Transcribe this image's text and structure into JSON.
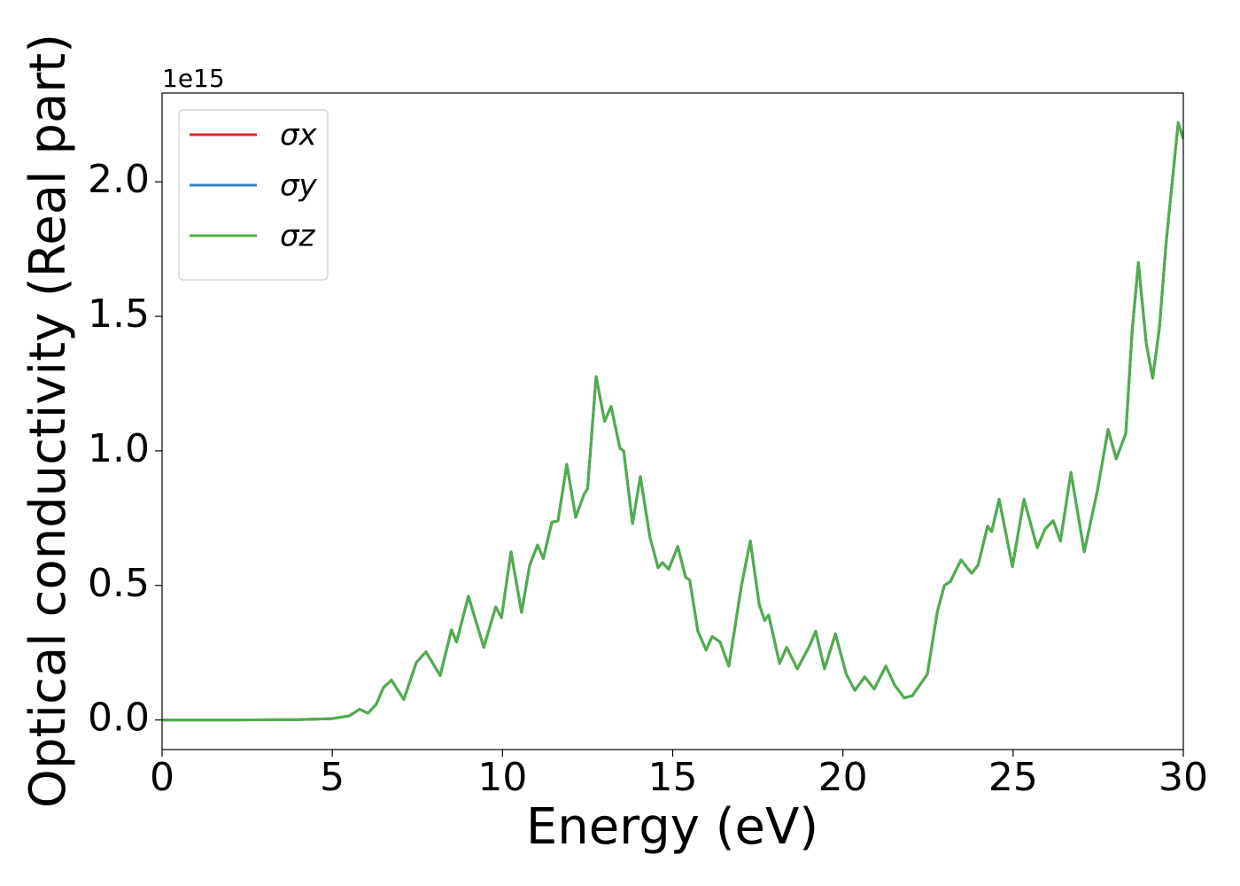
{
  "chart_data": {
    "type": "line",
    "x_label": "Energy (eV)",
    "y_label": "Optical conductivity (Real part)",
    "y_offset_label": "1e15",
    "xlim": [
      0,
      30
    ],
    "ylim": [
      -0.11,
      2.33
    ],
    "xticks": [
      0,
      5,
      10,
      15,
      20,
      25,
      30
    ],
    "yticks": [
      {
        "value": 0,
        "label": "0.0"
      },
      0.5,
      {
        "value": 1,
        "label": "1.0"
      },
      1.5,
      {
        "value": 2,
        "label": "2.0"
      }
    ],
    "grid": false,
    "legend": "upper left",
    "x": [
      0,
      2,
      4,
      5,
      5.5,
      5.8,
      6.05,
      6.3,
      6.5,
      6.74,
      7.1,
      7.47,
      7.75,
      8.17,
      8.5,
      8.65,
      9.0,
      9.45,
      9.8,
      9.97,
      10.25,
      10.56,
      10.8,
      11.03,
      11.2,
      11.45,
      11.63,
      11.89,
      12.15,
      12.4,
      12.5,
      12.75,
      13.0,
      13.19,
      13.45,
      13.56,
      13.82,
      14.05,
      14.33,
      14.57,
      14.7,
      14.88,
      15.15,
      15.38,
      15.5,
      15.74,
      15.98,
      16.16,
      16.39,
      16.65,
      17.02,
      17.28,
      17.54,
      17.7,
      17.82,
      18.14,
      18.35,
      18.66,
      19.0,
      19.2,
      19.46,
      19.78,
      20.1,
      20.35,
      20.64,
      20.92,
      21.26,
      21.52,
      21.8,
      22.04,
      22.48,
      22.77,
      22.98,
      23.16,
      23.47,
      23.78,
      23.97,
      24.25,
      24.37,
      24.59,
      24.98,
      25.32,
      25.71,
      25.94,
      26.18,
      26.39,
      26.7,
      27.09,
      27.48,
      27.79,
      28.03,
      28.31,
      28.5,
      28.68,
      28.91,
      29.1,
      29.3,
      29.5,
      29.85,
      30.0
    ],
    "series": [
      {
        "name": "σx",
        "color": "#d62728",
        "values": [
          0,
          0,
          0.001,
          0.005,
          0.015,
          0.04,
          0.025,
          0.06,
          0.12,
          0.148,
          0.076,
          0.214,
          0.253,
          0.165,
          0.335,
          0.29,
          0.46,
          0.27,
          0.42,
          0.38,
          0.625,
          0.4,
          0.575,
          0.65,
          0.6,
          0.735,
          0.74,
          0.95,
          0.753,
          0.84,
          0.86,
          1.276,
          1.11,
          1.165,
          1.01,
          1.0,
          0.73,
          0.905,
          0.68,
          0.566,
          0.585,
          0.56,
          0.645,
          0.53,
          0.52,
          0.33,
          0.26,
          0.31,
          0.29,
          0.2,
          0.5,
          0.665,
          0.43,
          0.37,
          0.39,
          0.21,
          0.27,
          0.19,
          0.27,
          0.33,
          0.19,
          0.32,
          0.17,
          0.11,
          0.16,
          0.115,
          0.2,
          0.13,
          0.082,
          0.09,
          0.17,
          0.4,
          0.5,
          0.515,
          0.595,
          0.545,
          0.575,
          0.72,
          0.7,
          0.82,
          0.57,
          0.82,
          0.64,
          0.71,
          0.74,
          0.665,
          0.92,
          0.625,
          0.855,
          1.08,
          0.97,
          1.065,
          1.45,
          1.7,
          1.4,
          1.27,
          1.46,
          1.78,
          2.22,
          2.16
        ]
      },
      {
        "name": "σy",
        "color": "#377eb8",
        "values": [
          0,
          0,
          0.001,
          0.005,
          0.015,
          0.04,
          0.025,
          0.06,
          0.12,
          0.148,
          0.076,
          0.214,
          0.253,
          0.165,
          0.335,
          0.29,
          0.46,
          0.27,
          0.42,
          0.38,
          0.625,
          0.4,
          0.575,
          0.65,
          0.6,
          0.735,
          0.74,
          0.95,
          0.753,
          0.84,
          0.86,
          1.276,
          1.11,
          1.165,
          1.01,
          1.0,
          0.73,
          0.905,
          0.68,
          0.566,
          0.585,
          0.56,
          0.645,
          0.53,
          0.52,
          0.33,
          0.26,
          0.31,
          0.29,
          0.2,
          0.5,
          0.665,
          0.43,
          0.37,
          0.39,
          0.21,
          0.27,
          0.19,
          0.27,
          0.33,
          0.19,
          0.32,
          0.17,
          0.11,
          0.16,
          0.115,
          0.2,
          0.13,
          0.082,
          0.09,
          0.17,
          0.4,
          0.5,
          0.515,
          0.595,
          0.545,
          0.575,
          0.72,
          0.7,
          0.82,
          0.57,
          0.82,
          0.64,
          0.71,
          0.74,
          0.665,
          0.92,
          0.625,
          0.855,
          1.08,
          0.97,
          1.065,
          1.45,
          1.7,
          1.4,
          1.27,
          1.46,
          1.78,
          2.22,
          2.16
        ]
      },
      {
        "name": "σz",
        "color": "#4daf4a",
        "values": [
          0,
          0,
          0.001,
          0.005,
          0.015,
          0.04,
          0.025,
          0.06,
          0.12,
          0.148,
          0.076,
          0.214,
          0.253,
          0.165,
          0.335,
          0.29,
          0.46,
          0.27,
          0.42,
          0.38,
          0.625,
          0.4,
          0.575,
          0.65,
          0.6,
          0.735,
          0.74,
          0.95,
          0.753,
          0.84,
          0.86,
          1.276,
          1.11,
          1.165,
          1.01,
          1.0,
          0.73,
          0.905,
          0.68,
          0.566,
          0.585,
          0.56,
          0.645,
          0.53,
          0.52,
          0.33,
          0.26,
          0.31,
          0.29,
          0.2,
          0.5,
          0.665,
          0.43,
          0.37,
          0.39,
          0.21,
          0.27,
          0.19,
          0.27,
          0.33,
          0.19,
          0.32,
          0.17,
          0.11,
          0.16,
          0.115,
          0.2,
          0.13,
          0.082,
          0.09,
          0.17,
          0.4,
          0.5,
          0.515,
          0.595,
          0.545,
          0.575,
          0.72,
          0.7,
          0.82,
          0.57,
          0.82,
          0.64,
          0.71,
          0.74,
          0.665,
          0.92,
          0.625,
          0.855,
          1.08,
          0.97,
          1.065,
          1.45,
          1.7,
          1.4,
          1.27,
          1.46,
          1.78,
          2.22,
          2.16
        ]
      }
    ]
  }
}
